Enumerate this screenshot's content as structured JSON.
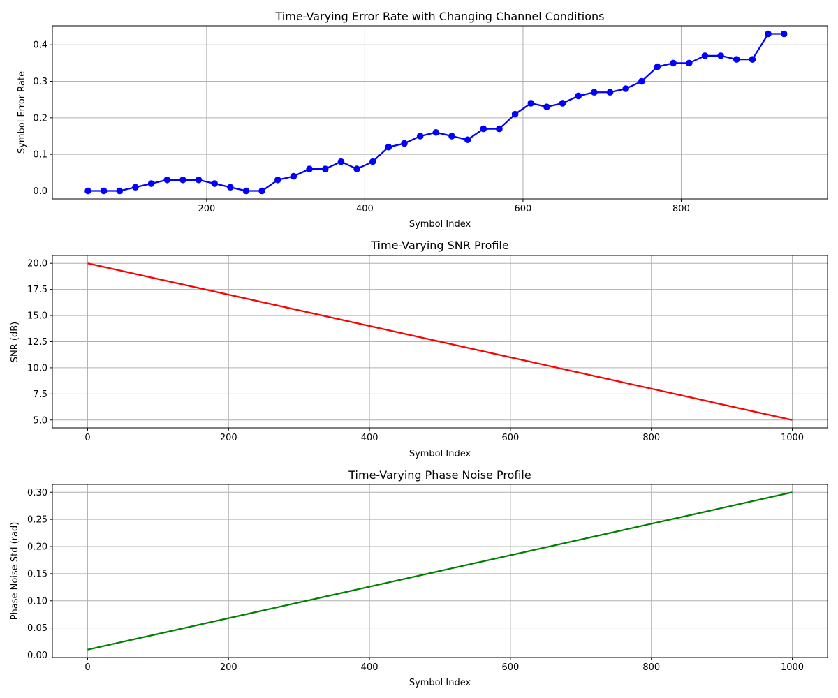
{
  "chart_data": [
    {
      "type": "line",
      "title": "Time-Varying Error Rate with Changing Channel Conditions",
      "xlabel": "Symbol Index",
      "ylabel": "Symbol Error Rate",
      "xlim": [
        5,
        985
      ],
      "ylim": [
        -0.022,
        0.452
      ],
      "xticks": [
        200,
        400,
        600,
        800
      ],
      "yticks": [
        0.0,
        0.1,
        0.2,
        0.3,
        0.4
      ],
      "ytick_labels": [
        "0.0",
        "0.1",
        "0.2",
        "0.3",
        "0.4"
      ],
      "grid": true,
      "markers": true,
      "series": [
        {
          "color": "#0000ff",
          "x": [
            50,
            70,
            90,
            110,
            130,
            150,
            170,
            190,
            210,
            230,
            250,
            270,
            290,
            310,
            330,
            350,
            370,
            390,
            410,
            430,
            450,
            470,
            490,
            510,
            530,
            550,
            570,
            590,
            610,
            630,
            650,
            670,
            690,
            710,
            730,
            750,
            770,
            790,
            810,
            830,
            850,
            870,
            890,
            910,
            930
          ],
          "y": [
            0.0,
            0.0,
            0.0,
            0.01,
            0.02,
            0.03,
            0.03,
            0.03,
            0.02,
            0.01,
            0.0,
            0.0,
            0.03,
            0.04,
            0.06,
            0.06,
            0.08,
            0.06,
            0.08,
            0.12,
            0.13,
            0.15,
            0.16,
            0.15,
            0.14,
            0.17,
            0.17,
            0.21,
            0.24,
            0.23,
            0.24,
            0.26,
            0.27,
            0.27,
            0.28,
            0.3,
            0.34,
            0.35,
            0.35,
            0.37,
            0.37,
            0.36,
            0.36,
            0.43,
            0.43
          ]
        }
      ]
    },
    {
      "type": "line",
      "title": "Time-Varying SNR Profile",
      "xlabel": "Symbol Index",
      "ylabel": "SNR (dB)",
      "xlim": [
        -50,
        1050
      ],
      "ylim": [
        4.25,
        20.75
      ],
      "xticks": [
        0,
        200,
        400,
        600,
        800,
        1000
      ],
      "yticks": [
        5.0,
        7.5,
        10.0,
        12.5,
        15.0,
        17.5,
        20.0
      ],
      "ytick_labels": [
        "5.0",
        "7.5",
        "10.0",
        "12.5",
        "15.0",
        "17.5",
        "20.0"
      ],
      "grid": true,
      "markers": false,
      "series": [
        {
          "color": "#ff0000",
          "x": [
            0,
            1000
          ],
          "y": [
            20.0,
            5.0
          ]
        }
      ]
    },
    {
      "type": "line",
      "title": "Time-Varying Phase Noise Profile",
      "xlabel": "Symbol Index",
      "ylabel": "Phase Noise Std (rad)",
      "xlim": [
        -50,
        1050
      ],
      "ylim": [
        -0.0045,
        0.3145
      ],
      "xticks": [
        0,
        200,
        400,
        600,
        800,
        1000
      ],
      "yticks": [
        0.0,
        0.05,
        0.1,
        0.15,
        0.2,
        0.25,
        0.3
      ],
      "ytick_labels": [
        "0.00",
        "0.05",
        "0.10",
        "0.15",
        "0.20",
        "0.25",
        "0.30"
      ],
      "grid": true,
      "markers": false,
      "series": [
        {
          "color": "#008000",
          "x": [
            0,
            1000
          ],
          "y": [
            0.01,
            0.3
          ]
        }
      ]
    }
  ]
}
